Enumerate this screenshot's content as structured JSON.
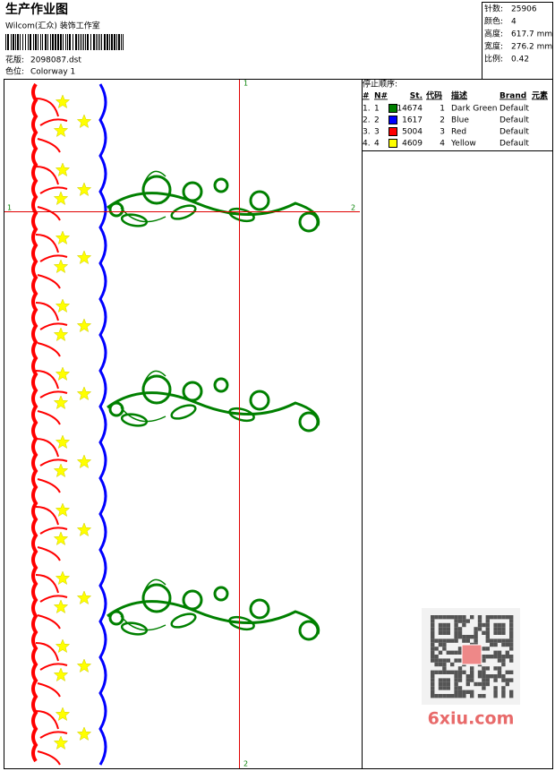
{
  "header": {
    "title": "生产作业图",
    "studio": "Wilcom(汇众) 装饰工作室",
    "design_label": "花版:",
    "design": "2098087.dst",
    "colorway_label": "色位:",
    "colorway": "Colorway 1"
  },
  "stats": [
    {
      "label": "针数:",
      "value": "25906"
    },
    {
      "label": "颜色:",
      "value": "4"
    },
    {
      "label": "高度:",
      "value": "617.7 mm"
    },
    {
      "label": "宽度:",
      "value": "276.2 mm"
    },
    {
      "label": "比例:",
      "value": "0.42"
    }
  ],
  "axis_marks": {
    "top": "1",
    "bottom": "2",
    "left": "1",
    "right": "2"
  },
  "stop_sequence": {
    "title": "停止顺序:",
    "columns": [
      "#",
      "N#",
      "St.",
      "代码",
      "描述",
      "Brand",
      "元素"
    ],
    "rows": [
      {
        "index": "1.",
        "needle": 1,
        "stitches": 14674,
        "code": 1,
        "description": "Dark Green",
        "brand": "Default",
        "color": "#008000"
      },
      {
        "index": "2.",
        "needle": 2,
        "stitches": 1617,
        "code": 2,
        "description": "Blue",
        "brand": "Default",
        "color": "#0000ff"
      },
      {
        "index": "3.",
        "needle": 3,
        "stitches": 5004,
        "code": 3,
        "description": "Red",
        "brand": "Default",
        "color": "#ff0000"
      },
      {
        "index": "4.",
        "needle": 4,
        "stitches": 4609,
        "code": 4,
        "description": "Yellow",
        "brand": "Default",
        "color": "#ffff00"
      }
    ]
  },
  "watermark": "6xiu.com"
}
